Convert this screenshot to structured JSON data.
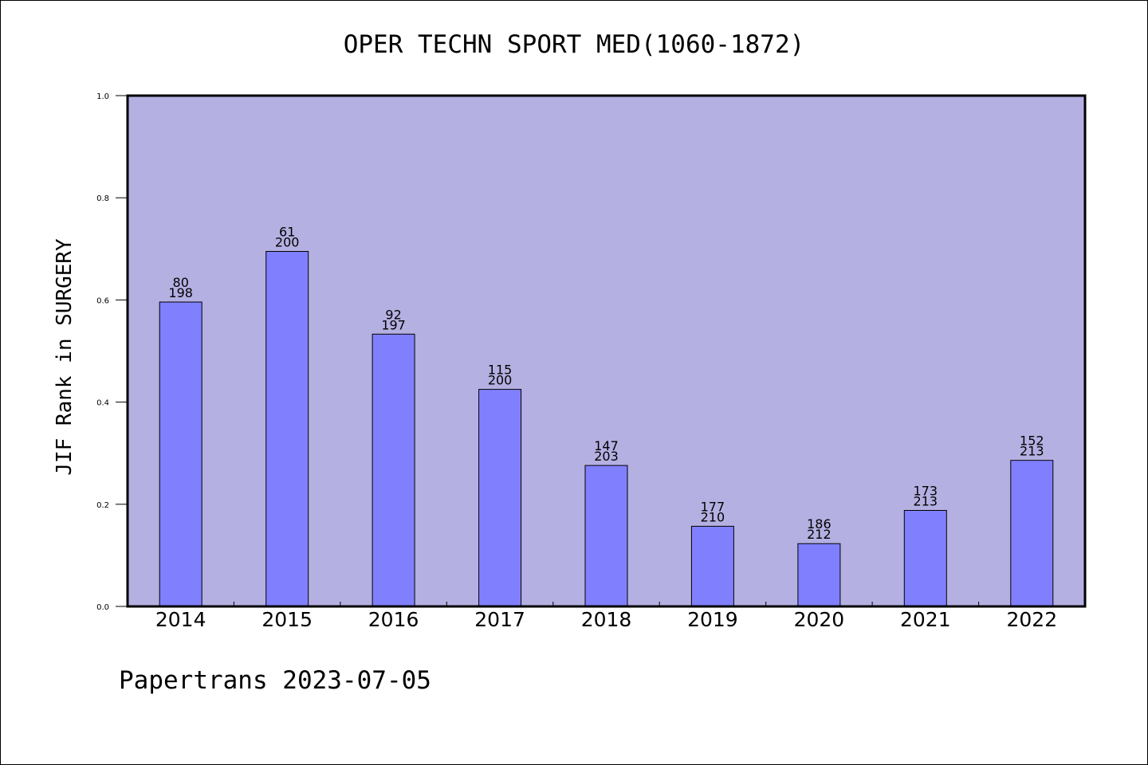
{
  "chart": {
    "title": "OPER TECHN SPORT MED(1060-1872)",
    "ylabel": "JIF Rank in SURGERY",
    "footer": "Papertrans 2023-07-05"
  },
  "colors": {
    "plot_background": "#b5b0e2",
    "bar_fill": "#8080ff",
    "bar_stroke": "#000000",
    "axis": "#000000"
  },
  "chart_data": {
    "type": "bar",
    "title": "OPER TECHN SPORT MED(1060-1872)",
    "xlabel": "",
    "ylabel": "JIF Rank in SURGERY",
    "ylim": [
      0,
      1.0
    ],
    "yticks": [
      "0.0",
      "0.2",
      "0.4",
      "0.6",
      "0.8",
      "1.0"
    ],
    "yticks_values": [
      0.0,
      0.2,
      0.4,
      0.6,
      0.8,
      1.0
    ],
    "grid": false,
    "categories": [
      "2014",
      "2015",
      "2016",
      "2017",
      "2018",
      "2019",
      "2020",
      "2021",
      "2022"
    ],
    "values": [
      0.596,
      0.695,
      0.533,
      0.425,
      0.276,
      0.157,
      0.123,
      0.188,
      0.286
    ],
    "rank": [
      "80",
      "61",
      "92",
      "115",
      "147",
      "177",
      "186",
      "173",
      "152"
    ],
    "total": [
      "198",
      "200",
      "197",
      "200",
      "203",
      "210",
      "212",
      "213",
      "213"
    ]
  }
}
